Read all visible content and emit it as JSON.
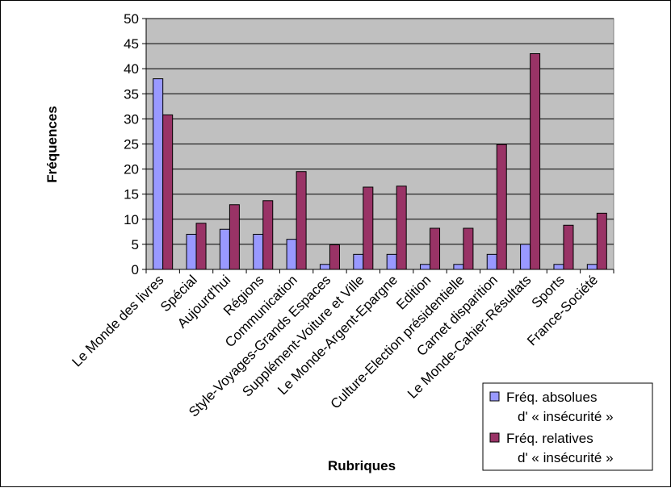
{
  "chart_data": {
    "type": "bar",
    "title": "",
    "xlabel": "Rubriques",
    "ylabel": "Fréquences",
    "ylim": [
      0,
      50
    ],
    "yticks": [
      0,
      5,
      10,
      15,
      20,
      25,
      30,
      35,
      40,
      45,
      50
    ],
    "grid": "horizontal",
    "legend_position": "bottom-right",
    "colors": {
      "plot_background": "#c0c0c0",
      "absolute": "#9999ff",
      "relative": "#993366"
    },
    "categories": [
      "Le Monde des livres",
      "Spécial",
      "Aujourd'hui",
      "Régions",
      "Communication",
      "Style-Voyages-Grands Espaces",
      "Supplément-Voiture et Ville",
      "Le Monde-Argent-Epargne",
      "Edition",
      "Culture-Election présidentielle",
      "Carnet disparition",
      "Le Monde-Cahier-Résultats",
      "Sports",
      "France-Société"
    ],
    "series": [
      {
        "name": "Fréq. absolues d' « insécurité »",
        "legend_lines": [
          "Fréq. absolues",
          "d' « insécurité »"
        ],
        "values": [
          38,
          7,
          8,
          7,
          6,
          1,
          3,
          3,
          1,
          1,
          3,
          5,
          1,
          1
        ]
      },
      {
        "name": "Fréq. relatives d' « insécurité »",
        "legend_lines": [
          "Fréq.  relatives",
          "d' « insécurité »"
        ],
        "values": [
          30.8,
          9.2,
          12.9,
          13.7,
          19.5,
          4.9,
          16.4,
          16.6,
          8.2,
          8.2,
          24.9,
          43,
          8.8,
          11.2
        ]
      }
    ]
  }
}
